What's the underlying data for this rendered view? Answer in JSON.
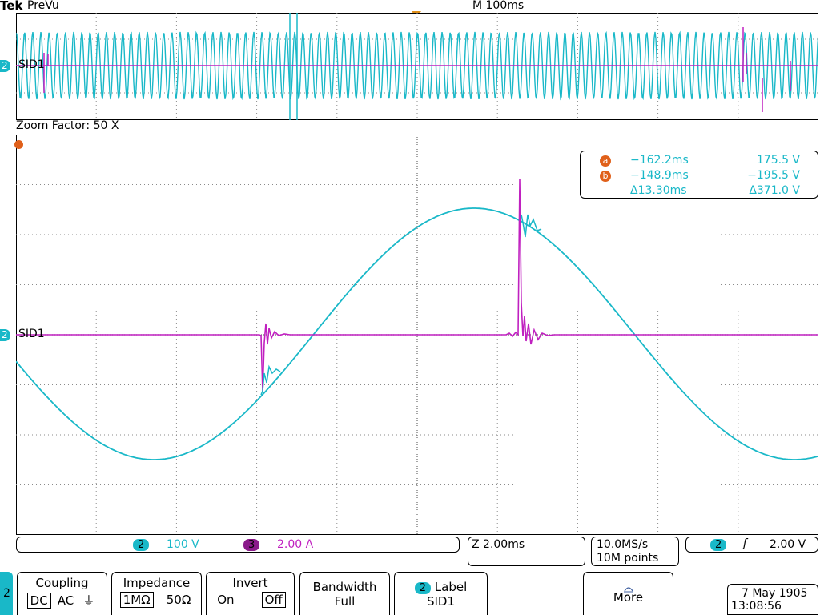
{
  "header": {
    "brand": "Tek",
    "mode": "PreVu",
    "timebase": "M 100ms",
    "zoom_factor": "Zoom Factor: 50 X"
  },
  "channels": {
    "ch2_marker": "2",
    "ch2_label": "SID1"
  },
  "cursors": {
    "cursor_a_marker": "a",
    "cursor_b_marker": "b",
    "a_time": "−162.2ms",
    "a_value": "175.5 V",
    "b_time": "−148.9ms",
    "b_value": "−195.5 V",
    "delta_time": "Δ13.30ms",
    "delta_value": "Δ371.0 V"
  },
  "status_bar": {
    "ch2_num": "2",
    "ch2_scale": "100 V",
    "ch3_num": "3",
    "ch3_scale": "2.00 A",
    "zoom_timebase": "Z 2.00ms",
    "sample_rate": "10.0MS/s",
    "record_length": "10M points",
    "trig_source": "2",
    "trig_slope": "ʃ",
    "trig_level": "2.00 V"
  },
  "menu": {
    "channel": "2",
    "coupling": {
      "title": "Coupling",
      "options": [
        "DC",
        "AC",
        "⏚"
      ],
      "selected": "DC"
    },
    "impedance": {
      "title": "Impedance",
      "options": [
        "1MΩ",
        "50Ω"
      ],
      "selected": "1MΩ"
    },
    "invert": {
      "title": "Invert",
      "options": [
        "On",
        "Off"
      ],
      "selected": "Off"
    },
    "bandwidth": {
      "title": "Bandwidth",
      "value": "Full"
    },
    "label": {
      "num": "2",
      "title": "Label",
      "value": "SID1"
    },
    "more": {
      "title": "More"
    }
  },
  "datetime": {
    "date": "7 May 1905",
    "time": "13:08:56"
  },
  "colors": {
    "ch2": "#19b8c8",
    "ch3": "#c020c0",
    "cursor_marker": "#e0601a",
    "grid": "#8a8a8a"
  }
}
